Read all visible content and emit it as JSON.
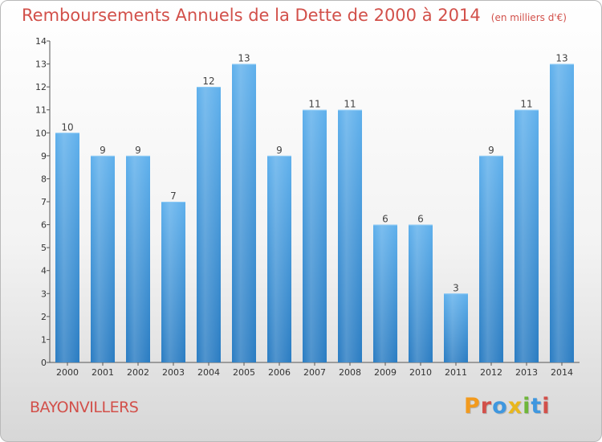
{
  "chart_data": {
    "type": "bar",
    "title": "Remboursements Annuels de la Dette de 2000 à 2014",
    "subtitle": "(en milliers d'€)",
    "xlabel": "",
    "ylabel": "",
    "categories": [
      "2000",
      "2001",
      "2002",
      "2003",
      "2004",
      "2005",
      "2006",
      "2007",
      "2008",
      "2009",
      "2010",
      "2011",
      "2012",
      "2013",
      "2014"
    ],
    "values": [
      10,
      9,
      9,
      7,
      12,
      13,
      9,
      11,
      11,
      6,
      6,
      3,
      9,
      11,
      13
    ],
    "ylim": [
      0,
      14
    ],
    "yticks": [
      "0",
      "1",
      "2",
      "3",
      "4",
      "5",
      "6",
      "7",
      "8",
      "9",
      "10",
      "11",
      "12",
      "13",
      "14"
    ],
    "grid": false,
    "bar_color": "#3f97df"
  },
  "footer": {
    "commune": "BAYONVILLERS",
    "brand": "Proxiti"
  },
  "colors": {
    "title": "#d2504a",
    "brand_letters": [
      "#f29a1e",
      "#d2504a",
      "#3f97df",
      "#e9b71c",
      "#6fb63a",
      "#3f97df",
      "#d2504a"
    ]
  }
}
